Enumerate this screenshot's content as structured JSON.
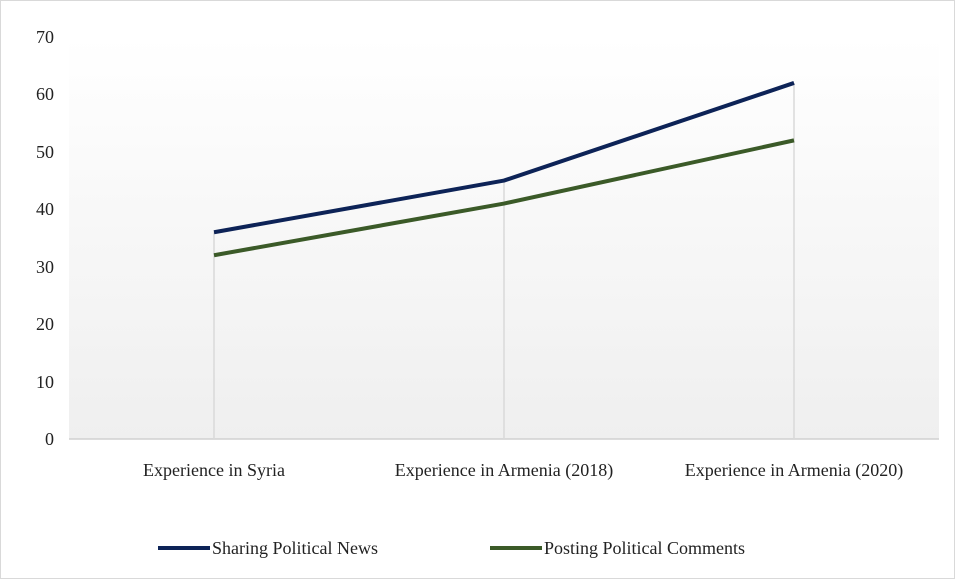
{
  "chart_data": {
    "type": "line",
    "categories": [
      "Experience in Syria",
      "Experience in Armenia (2018)",
      "Experience in Armenia (2020)"
    ],
    "series": [
      {
        "name": "Sharing Political News",
        "color": "#0d2357",
        "values": [
          36,
          45,
          62
        ]
      },
      {
        "name": "Posting Political Comments",
        "color": "#3b5a28",
        "values": [
          32,
          41,
          52
        ]
      }
    ],
    "ylim": [
      0,
      70
    ],
    "yticks": [
      0,
      10,
      20,
      30,
      40,
      50,
      60,
      70
    ],
    "drop_lines": true,
    "legend": "bottom"
  }
}
